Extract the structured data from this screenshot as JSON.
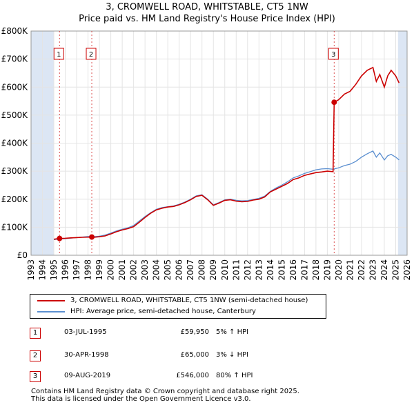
{
  "title_line1": "3, CROMWELL ROAD, WHITSTABLE, CT5 1NW",
  "title_line2": "Price paid vs. HM Land Registry's House Price Index (HPI)",
  "colors": {
    "property": "#cc0000",
    "hpi": "#5b8fd0",
    "shade": "#dce6f4",
    "marker_border": "#cc0000"
  },
  "chart_data": {
    "type": "line",
    "title": "3, CROMWELL ROAD, WHITSTABLE, CT5 1NW — Price paid vs. HM Land Registry's House Price Index (HPI)",
    "xlabel": "",
    "ylabel": "",
    "xlim": [
      1993,
      2026
    ],
    "ylim": [
      0,
      800000
    ],
    "x_ticks": [
      "1993",
      "1994",
      "1995",
      "1996",
      "1997",
      "1998",
      "1999",
      "2000",
      "2001",
      "2002",
      "2003",
      "2004",
      "2005",
      "2006",
      "2007",
      "2008",
      "2009",
      "2010",
      "2011",
      "2012",
      "2013",
      "2014",
      "2015",
      "2016",
      "2017",
      "2018",
      "2019",
      "2020",
      "2021",
      "2022",
      "2023",
      "2024",
      "2025",
      "2026"
    ],
    "y_ticks": [
      {
        "value": 0,
        "label": "£0"
      },
      {
        "value": 100000,
        "label": "£100K"
      },
      {
        "value": 200000,
        "label": "£200K"
      },
      {
        "value": 300000,
        "label": "£300K"
      },
      {
        "value": 400000,
        "label": "£400K"
      },
      {
        "value": 500000,
        "label": "£500K"
      },
      {
        "value": 600000,
        "label": "£600K"
      },
      {
        "value": 700000,
        "label": "£700K"
      },
      {
        "value": 800000,
        "label": "£800K"
      }
    ],
    "shaded_ranges": [
      [
        1993,
        1995.0
      ],
      [
        2025.2,
        2026
      ]
    ],
    "series": [
      {
        "name": "3, CROMWELL ROAD, WHITSTABLE, CT5 1NW (semi-detached house)",
        "x": [
          1995.0,
          1995.5,
          1996.0,
          1996.5,
          1997.0,
          1997.5,
          1998.33,
          1998.5,
          1999.0,
          1999.5,
          2000.0,
          2000.5,
          2001.0,
          2001.5,
          2002.0,
          2002.5,
          2003.0,
          2003.5,
          2004.0,
          2004.5,
          2005.0,
          2005.5,
          2006.0,
          2006.5,
          2007.0,
          2007.5,
          2008.0,
          2008.5,
          2009.0,
          2009.5,
          2010.0,
          2010.5,
          2011.0,
          2011.5,
          2012.0,
          2012.5,
          2013.0,
          2013.5,
          2014.0,
          2014.5,
          2015.0,
          2015.5,
          2016.0,
          2016.5,
          2017.0,
          2017.5,
          2018.0,
          2018.5,
          2019.0,
          2019.5,
          2019.6,
          2019.7,
          2020.0,
          2020.5,
          2021.0,
          2021.5,
          2022.0,
          2022.5,
          2023.0,
          2023.3,
          2023.6,
          2024.0,
          2024.3,
          2024.6,
          2025.0,
          2025.3
        ],
        "y": [
          57000,
          59950,
          60500,
          62000,
          63000,
          64000,
          65000,
          64000,
          66000,
          69000,
          76000,
          84000,
          90000,
          95000,
          102000,
          118000,
          135000,
          150000,
          162000,
          168000,
          172000,
          174000,
          180000,
          188000,
          198000,
          210000,
          214000,
          198000,
          178000,
          186000,
          196000,
          198000,
          193000,
          191000,
          192000,
          197000,
          200000,
          208000,
          226000,
          236000,
          246000,
          256000,
          270000,
          276000,
          285000,
          290000,
          295000,
          297000,
          300000,
          298000,
          546000,
          548000,
          555000,
          575000,
          585000,
          610000,
          640000,
          660000,
          670000,
          620000,
          645000,
          600000,
          640000,
          660000,
          640000,
          615000
        ]
      },
      {
        "name": "HPI: Average price, semi-detached house, Canterbury",
        "x": [
          1995.0,
          1995.5,
          1996.0,
          1996.5,
          1997.0,
          1997.5,
          1998.0,
          1998.5,
          1999.0,
          1999.5,
          2000.0,
          2000.5,
          2001.0,
          2001.5,
          2002.0,
          2002.5,
          2003.0,
          2003.5,
          2004.0,
          2004.5,
          2005.0,
          2005.5,
          2006.0,
          2006.5,
          2007.0,
          2007.5,
          2008.0,
          2008.5,
          2009.0,
          2009.5,
          2010.0,
          2010.5,
          2011.0,
          2011.5,
          2012.0,
          2012.5,
          2013.0,
          2013.5,
          2014.0,
          2014.5,
          2015.0,
          2015.5,
          2016.0,
          2016.5,
          2017.0,
          2017.5,
          2018.0,
          2018.5,
          2019.0,
          2019.5,
          2020.0,
          2020.5,
          2021.0,
          2021.5,
          2022.0,
          2022.5,
          2023.0,
          2023.3,
          2023.6,
          2024.0,
          2024.3,
          2024.6,
          2025.0,
          2025.3
        ],
        "y": [
          56000,
          57500,
          59000,
          61000,
          63000,
          65000,
          67000,
          66500,
          68000,
          72000,
          79000,
          87000,
          93000,
          98000,
          106000,
          122000,
          138000,
          152000,
          164000,
          170000,
          173000,
          176000,
          182000,
          190000,
          200000,
          212000,
          216000,
          200000,
          180000,
          188000,
          198000,
          200000,
          196000,
          194000,
          195000,
          199000,
          203000,
          211000,
          228000,
          240000,
          250000,
          262000,
          276000,
          283000,
          292000,
          298000,
          305000,
          308000,
          309000,
          307000,
          312000,
          320000,
          325000,
          335000,
          350000,
          362000,
          372000,
          350000,
          365000,
          340000,
          355000,
          360000,
          350000,
          340000
        ]
      }
    ],
    "annotations": [
      {
        "label": "1",
        "x": 1995.5,
        "y": 59950,
        "date": "03-JUL-1995",
        "price": "£59,950",
        "hpi_note": "5% ↑ HPI"
      },
      {
        "label": "2",
        "x": 1998.33,
        "y": 65000,
        "date": "30-APR-1998",
        "price": "£65,000",
        "hpi_note": "3% ↓ HPI"
      },
      {
        "label": "3",
        "x": 2019.6,
        "y": 546000,
        "date": "09-AUG-2019",
        "price": "£546,000",
        "hpi_note": "80% ↑ HPI"
      }
    ]
  },
  "legend": {
    "property_label": "3, CROMWELL ROAD, WHITSTABLE, CT5 1NW (semi-detached house)",
    "hpi_label": "HPI: Average price, semi-detached house, Canterbury"
  },
  "transactions": [
    {
      "num": "1",
      "date": "03-JUL-1995",
      "price": "£59,950",
      "hpi": "5% ↑ HPI"
    },
    {
      "num": "2",
      "date": "30-APR-1998",
      "price": "£65,000",
      "hpi": "3% ↓ HPI"
    },
    {
      "num": "3",
      "date": "09-AUG-2019",
      "price": "£546,000",
      "hpi": "80% ↑ HPI"
    }
  ],
  "footer": {
    "line1": "Contains HM Land Registry data © Crown copyright and database right 2025.",
    "line2": "This data is licensed under the Open Government Licence v3.0."
  }
}
